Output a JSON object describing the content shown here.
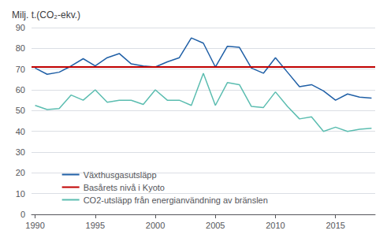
{
  "chart_data": {
    "type": "line",
    "title": "Milj. t.(CO₂-ekv.)",
    "x": [
      1990,
      1991,
      1992,
      1993,
      1994,
      1995,
      1996,
      1997,
      1998,
      1999,
      2000,
      2001,
      2002,
      2003,
      2004,
      2005,
      2006,
      2007,
      2008,
      2009,
      2010,
      2011,
      2012,
      2013,
      2014,
      2015,
      2016,
      2017,
      2018
    ],
    "series": [
      {
        "name": "Växthusgasutsläpp",
        "color": "#1f5fa6",
        "values": [
          70.5,
          67.5,
          68.5,
          71.5,
          75.0,
          71.5,
          75.5,
          77.5,
          72.5,
          71.5,
          71.0,
          73.5,
          75.5,
          85.0,
          82.5,
          71.0,
          81.0,
          80.5,
          70.5,
          68.0,
          75.5,
          68.5,
          61.5,
          62.5,
          59.5,
          55.0,
          58.0,
          56.5,
          56.0
        ]
      },
      {
        "name": "Basårets nivå i Kyoto",
        "color": "#c00000",
        "type": "hline",
        "value": 71.0
      },
      {
        "name": "CO2-utsläpp från energianvändning av bränslen",
        "color": "#5bbdb0",
        "values": [
          52.5,
          50.5,
          51.0,
          57.5,
          55.0,
          60.0,
          54.0,
          55.0,
          55.0,
          53.0,
          60.0,
          55.0,
          55.0,
          52.5,
          68.0,
          52.5,
          63.5,
          62.5,
          52.0,
          51.5,
          59.0,
          52.0,
          46.0,
          47.0,
          40.0,
          42.0,
          40.0,
          41.0,
          41.5
        ]
      }
    ],
    "xlim": [
      1989.7,
      2018.3
    ],
    "xticks": [
      1990,
      1995,
      2000,
      2005,
      2010,
      2015
    ],
    "ylim": [
      0,
      90
    ],
    "yticks": [
      0,
      10,
      20,
      30,
      40,
      50,
      60,
      70,
      80,
      90
    ],
    "grid": true,
    "legend": "lower left"
  }
}
